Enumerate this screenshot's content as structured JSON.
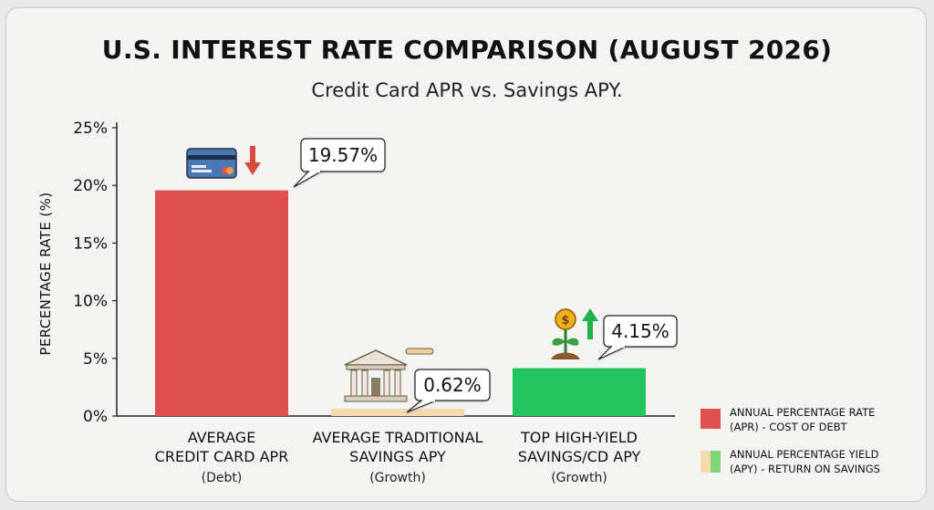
{
  "chart_data": {
    "type": "bar",
    "title": "U.S. INTEREST RATE COMPARISON (AUGUST 2026)",
    "subtitle": "Credit Card APR vs. Savings APY.",
    "ylabel": "PERCENTAGE RATE (%)",
    "xlabel": "",
    "ylim": [
      0,
      25
    ],
    "yticks": [
      "0%",
      "5%",
      "10%",
      "15%",
      "20%",
      "25%"
    ],
    "grid": false,
    "categories": [
      {
        "name_lines": [
          "AVERAGE",
          "CREDIT CARD APR"
        ],
        "sub": "(Debt)"
      },
      {
        "name_lines": [
          "AVERAGE TRADITIONAL",
          "SAVINGS APY"
        ],
        "sub": "(Growth)"
      },
      {
        "name_lines": [
          "TOP HIGH-YIELD",
          "SAVINGS/CD APY"
        ],
        "sub": "(Growth)"
      }
    ],
    "values": [
      19.57,
      0.62,
      4.15
    ],
    "data_labels": [
      "19.57%",
      "0.62%",
      "4.15%"
    ],
    "bar_colors": [
      "#e0504d",
      "#f6d9ad",
      "#22c55e"
    ],
    "icons": [
      "credit-card-down-arrow",
      "bank-building",
      "money-plant-up-arrow"
    ],
    "legend": {
      "position": "bottom-right",
      "entries": [
        {
          "lines": [
            "ANNUAL PERCENTAGE RATE",
            "(APR) - COST OF DEBT"
          ],
          "colors": [
            "#e0504d"
          ]
        },
        {
          "lines": [
            "ANNUAL PERCENTAGE YIELD",
            "(APY) - RETURN ON SAVINGS"
          ],
          "colors": [
            "#f6d9ad",
            "#7fd67a"
          ]
        }
      ]
    }
  }
}
